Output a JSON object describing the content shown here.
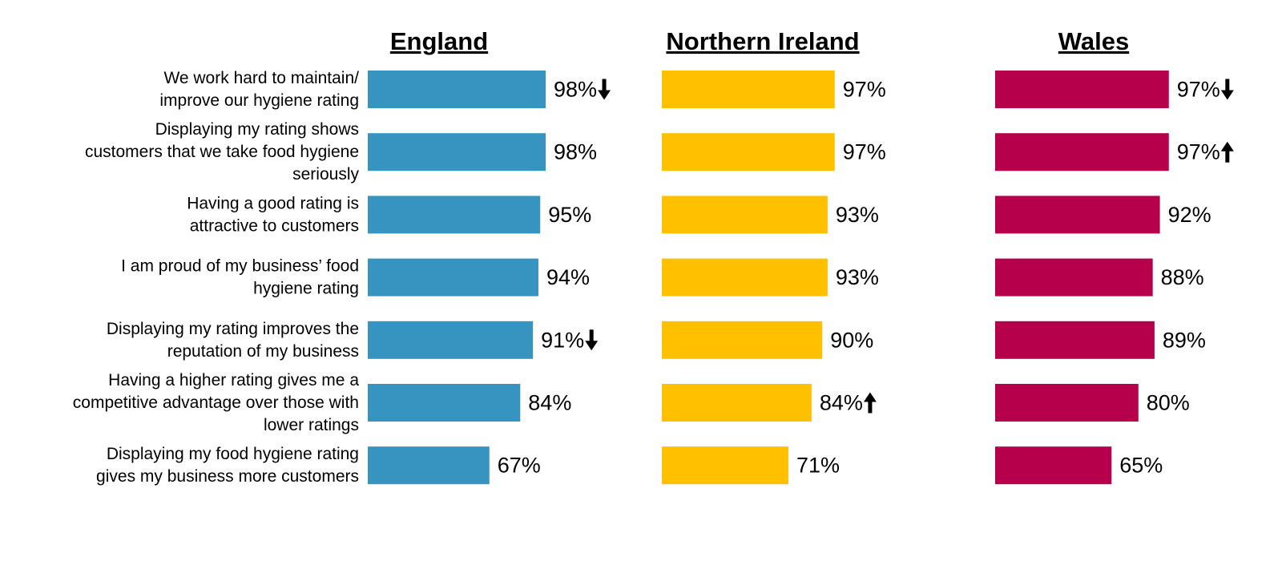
{
  "chart_data": {
    "type": "bar",
    "orientation": "horizontal",
    "categories": [
      [
        "We work hard to maintain/",
        "improve our hygiene rating"
      ],
      [
        "Displaying my rating shows",
        "customers that we take food hygiene",
        "seriously"
      ],
      [
        "Having a good rating is",
        "attractive to customers"
      ],
      [
        "I am proud of my business’ food",
        "hygiene rating"
      ],
      [
        "Displaying my rating improves the",
        "reputation of my business"
      ],
      [
        "Having a higher rating gives me a",
        "competitive advantage over those with",
        "lower ratings"
      ],
      [
        "Displaying my food hygiene rating",
        "gives my business more customers"
      ]
    ],
    "unit": "%",
    "xlim": [
      0,
      100
    ],
    "grid": false,
    "legend": "none",
    "series": [
      {
        "name": "England",
        "color": "#3793c0",
        "values": [
          98,
          98,
          95,
          94,
          91,
          84,
          67
        ],
        "change_markers": [
          "down",
          "",
          "",
          "",
          "down",
          "",
          ""
        ]
      },
      {
        "name": "Northern Ireland",
        "color": "#ffc000",
        "values": [
          97,
          97,
          93,
          93,
          90,
          84,
          71
        ],
        "change_markers": [
          "",
          "",
          "",
          "",
          "",
          "up",
          ""
        ]
      },
      {
        "name": "Wales",
        "color": "#b7004c",
        "values": [
          97,
          97,
          92,
          88,
          89,
          80,
          65
        ],
        "change_markers": [
          "down",
          "up",
          "",
          "",
          "",
          "",
          ""
        ]
      }
    ]
  }
}
